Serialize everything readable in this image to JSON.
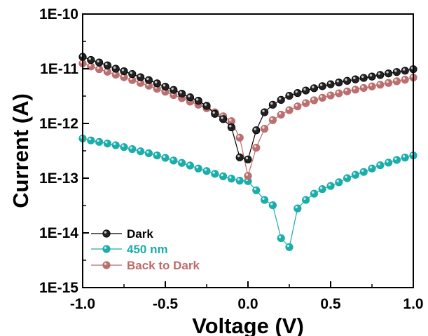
{
  "chart_data": {
    "type": "scatter",
    "title": "",
    "xlabel": "Voltage (V)",
    "ylabel": "Current (A)",
    "xlim": [
      -1.0,
      1.0
    ],
    "ylim": [
      1e-15,
      1e-10
    ],
    "yscale": "log",
    "grid": false,
    "legend_position": "bottom-left",
    "x_tick_labels": [
      "-1.0",
      "-0.5",
      "0.0",
      "0.5",
      "1.0"
    ],
    "y_tick_labels": [
      "1E-15",
      "1E-14",
      "1E-13",
      "1E-12",
      "1E-11",
      "1E-10"
    ],
    "series": [
      {
        "name": "Dark",
        "color": "#000000",
        "marker_color": "#222222",
        "x": [
          -1.0,
          -0.95,
          -0.9,
          -0.85,
          -0.8,
          -0.75,
          -0.7,
          -0.65,
          -0.6,
          -0.55,
          -0.5,
          -0.45,
          -0.4,
          -0.35,
          -0.3,
          -0.25,
          -0.2,
          -0.15,
          -0.1,
          -0.05,
          0.0,
          0.05,
          0.1,
          0.15,
          0.2,
          0.25,
          0.3,
          0.35,
          0.4,
          0.45,
          0.5,
          0.55,
          0.6,
          0.65,
          0.7,
          0.75,
          0.8,
          0.85,
          0.9,
          0.95,
          1.0
        ],
        "y": [
          1.65e-11,
          1.45e-11,
          1.3e-11,
          1.15e-11,
          1e-11,
          9e-12,
          8e-12,
          7e-12,
          6.2e-12,
          5.4e-12,
          4.7e-12,
          4.1e-12,
          3.5e-12,
          3e-12,
          2.6e-12,
          2.1e-12,
          1.5e-12,
          1.2e-12,
          8.5e-13,
          2.4e-13,
          2.2e-13,
          7.5e-13,
          1.6e-12,
          2.2e-12,
          2.7e-12,
          3.2e-12,
          3.6e-12,
          4e-12,
          4.4e-12,
          4.8e-12,
          5.2e-12,
          5.6e-12,
          6e-12,
          6.4e-12,
          6.8e-12,
          7.2e-12,
          7.7e-12,
          8.2e-12,
          8.7e-12,
          9.2e-12,
          9.8e-12
        ]
      },
      {
        "name": "450 nm",
        "color": "#1aadaa",
        "marker_color": "#1aadaa",
        "x": [
          -1.0,
          -0.95,
          -0.9,
          -0.85,
          -0.8,
          -0.75,
          -0.7,
          -0.65,
          -0.6,
          -0.55,
          -0.5,
          -0.45,
          -0.4,
          -0.35,
          -0.3,
          -0.25,
          -0.2,
          -0.15,
          -0.1,
          -0.05,
          0.0,
          0.05,
          0.1,
          0.15,
          0.2,
          0.25,
          0.3,
          0.35,
          0.4,
          0.45,
          0.5,
          0.55,
          0.6,
          0.65,
          0.7,
          0.75,
          0.8,
          0.85,
          0.9,
          0.95,
          1.0
        ],
        "y": [
          5.3e-13,
          4.9e-13,
          4.6e-13,
          4.3e-13,
          4e-13,
          3.7e-13,
          3.4e-13,
          3.1e-13,
          2.85e-13,
          2.6e-13,
          2.35e-13,
          2.1e-13,
          1.9e-13,
          1.7e-13,
          1.5e-13,
          1.35e-13,
          1.2e-13,
          1.08e-13,
          9.8e-14,
          9e-14,
          8.8e-14,
          6e-14,
          4e-14,
          3.2e-14,
          8e-15,
          5.5e-15,
          2.8e-14,
          4e-14,
          5.2e-14,
          6.3e-14,
          7.2e-14,
          8.4e-14,
          1e-13,
          1.15e-13,
          1.3e-13,
          1.5e-13,
          1.72e-13,
          1.92e-13,
          2.15e-13,
          2.38e-13,
          2.6e-13
        ]
      },
      {
        "name": "Back to Dark",
        "color": "#c06a6a",
        "marker_color": "#b87070",
        "x": [
          -1.0,
          -0.95,
          -0.9,
          -0.85,
          -0.8,
          -0.75,
          -0.7,
          -0.65,
          -0.6,
          -0.55,
          -0.5,
          -0.45,
          -0.4,
          -0.35,
          -0.3,
          -0.25,
          -0.2,
          -0.15,
          -0.1,
          -0.05,
          0.0,
          0.05,
          0.1,
          0.15,
          0.2,
          0.25,
          0.3,
          0.35,
          0.4,
          0.45,
          0.5,
          0.55,
          0.6,
          0.65,
          0.7,
          0.75,
          0.8,
          0.85,
          0.9,
          0.95,
          1.0
        ],
        "y": [
          1.25e-11,
          1.1e-11,
          9.8e-12,
          8.8e-12,
          7.8e-12,
          7e-12,
          6.2e-12,
          5.5e-12,
          4.9e-12,
          4.3e-12,
          3.8e-12,
          3.3e-12,
          2.9e-12,
          2.5e-12,
          2.2e-12,
          1.9e-12,
          1.6e-12,
          1.35e-12,
          1.1e-12,
          5.5e-13,
          1.1e-13,
          3.6e-13,
          8e-13,
          1.15e-12,
          1.45e-12,
          1.75e-12,
          2.05e-12,
          2.35e-12,
          2.65e-12,
          2.95e-12,
          3.25e-12,
          3.55e-12,
          3.85e-12,
          4.15e-12,
          4.45e-12,
          4.75e-12,
          5.1e-12,
          5.5e-12,
          5.9e-12,
          6.3e-12,
          6.9e-12
        ]
      }
    ]
  }
}
